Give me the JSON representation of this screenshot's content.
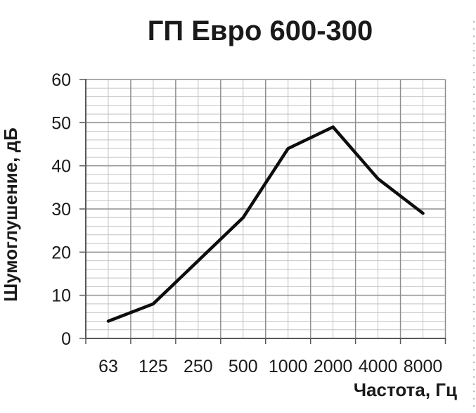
{
  "page": {
    "background": "#ffffff"
  },
  "chart_data": {
    "type": "line",
    "title": "ГП Евро 600-300",
    "xlabel": "Частота, Гц",
    "ylabel": "Шумоглушение, дБ",
    "categories": [
      "63",
      "125",
      "250",
      "500",
      "1000",
      "2000",
      "4000",
      "8000"
    ],
    "values": [
      4,
      8,
      18,
      28,
      44,
      49,
      37,
      29
    ],
    "ylim": [
      0,
      60
    ],
    "y_ticks": [
      0,
      10,
      20,
      30,
      40,
      50,
      60
    ],
    "y_major_step": 10,
    "y_minor_step": 2,
    "grid": "major and minor horizontal, major and minor vertical",
    "legend": "none",
    "colors": {
      "series_line": "#0d0d0d",
      "grid_major": "#8f8f8f",
      "grid_minor": "#c2c2c2",
      "axis_line": "#595959",
      "text": "#1a1a1a",
      "edge_dots": "#b3b3b3"
    }
  }
}
